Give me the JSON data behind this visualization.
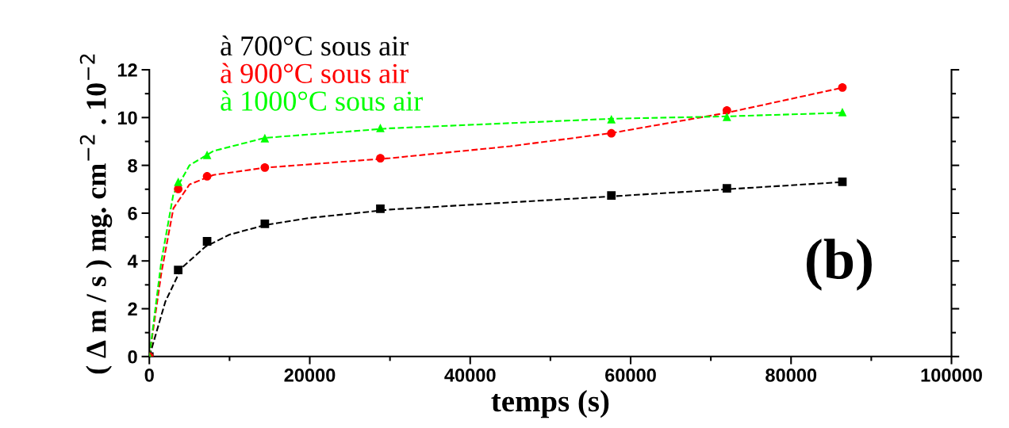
{
  "chart_data": {
    "type": "scatter",
    "xlabel": "temps (s)",
    "ylabel": "( Δ m / s ) mg. cm$^{−2}$ . 10$^{−2}$",
    "xlim": [
      0,
      100000
    ],
    "xticks": [
      0,
      20000,
      40000,
      60000,
      80000,
      100000
    ],
    "ylim": [
      0,
      12
    ],
    "yticks": [
      0,
      2,
      4,
      6,
      8,
      10,
      12
    ],
    "grid": false,
    "legend": "top left",
    "annotations": [
      "(b)"
    ],
    "series": [
      {
        "name": "à 700°C sous air",
        "color": "#000000",
        "marker": "square",
        "x": [
          0,
          3600,
          7200,
          14400,
          28800,
          57600,
          72000,
          86400
        ],
        "values": [
          0,
          3.62,
          4.82,
          5.55,
          6.18,
          6.74,
          7.04,
          7.31
        ]
      },
      {
        "name": "à 900°C sous air",
        "color": "#ff0000",
        "marker": "circle",
        "x": [
          0,
          3600,
          7200,
          14400,
          28800,
          57600,
          72000,
          86400
        ],
        "values": [
          0,
          7.01,
          7.54,
          7.91,
          8.3,
          9.34,
          10.3,
          11.26
        ]
      },
      {
        "name": "à 1000°C sous air",
        "color": "#00ff00",
        "marker": "triangle",
        "x": [
          0,
          3600,
          7200,
          14400,
          28800,
          57600,
          72000,
          86400
        ],
        "values": [
          0,
          7.31,
          8.44,
          9.14,
          9.57,
          9.93,
          10.03,
          10.23
        ]
      },
      {
        "type": "line",
        "line_style": "dashed",
        "color": "#000000",
        "x": [
          0,
          2000,
          4000,
          7000,
          10000,
          14400,
          20000,
          30000,
          45000,
          60000,
          72000,
          86400
        ],
        "values": [
          0,
          2.3,
          3.7,
          4.6,
          5.1,
          5.5,
          5.8,
          6.15,
          6.45,
          6.75,
          7.0,
          7.3
        ]
      },
      {
        "type": "line",
        "line_style": "dashed",
        "color": "#ff0000",
        "x": [
          0,
          1500,
          3000,
          5000,
          8000,
          14400,
          30000,
          45000,
          57600,
          72000,
          86400
        ],
        "values": [
          0,
          3.5,
          6.2,
          7.2,
          7.6,
          7.9,
          8.3,
          8.8,
          9.35,
          10.2,
          11.25
        ]
      },
      {
        "type": "line",
        "line_style": "dashed",
        "color": "#00ff00",
        "x": [
          0,
          1500,
          3000,
          5000,
          8000,
          14400,
          30000,
          57600,
          72000,
          86400
        ],
        "values": [
          0,
          4.0,
          6.8,
          8.0,
          8.6,
          9.15,
          9.55,
          9.95,
          10.05,
          10.2
        ]
      }
    ]
  }
}
